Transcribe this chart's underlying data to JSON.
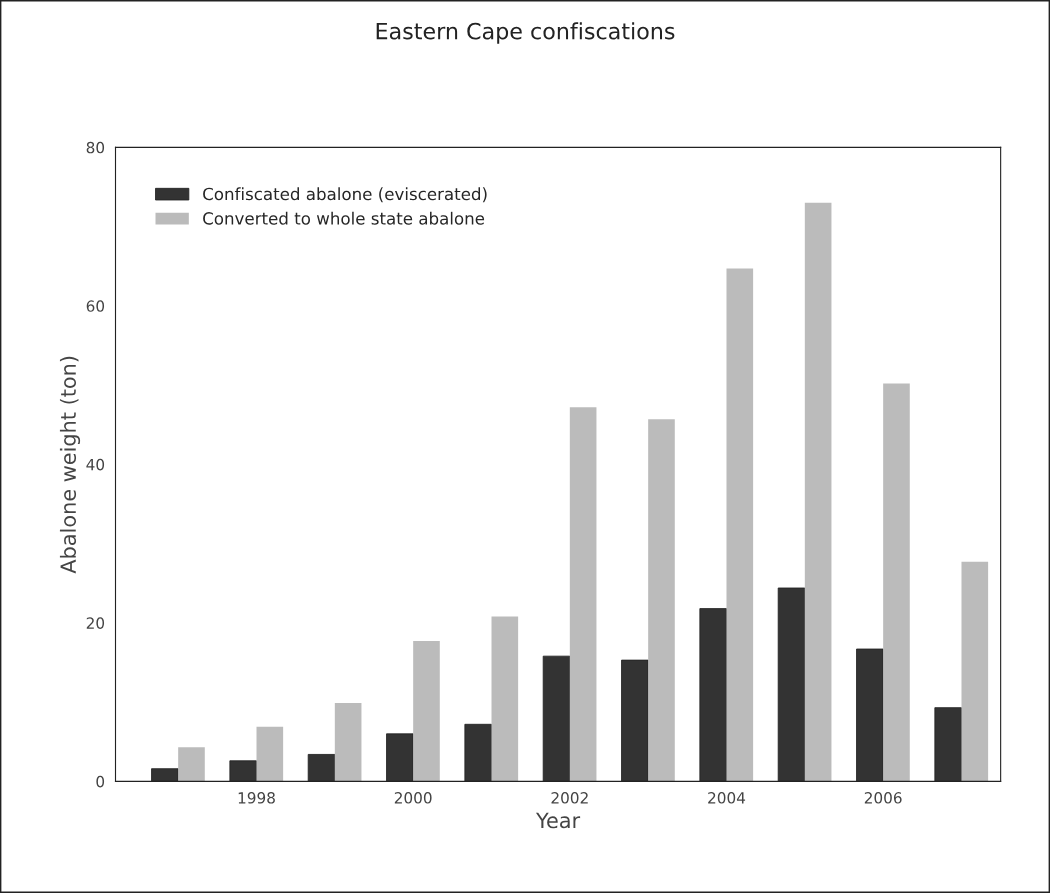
{
  "chart_data": {
    "type": "bar",
    "title": "Eastern Cape confiscations",
    "xlabel": "Year",
    "ylabel": "Abalone weight (ton)",
    "x": [
      1997,
      1998,
      1999,
      2000,
      2001,
      2002,
      2003,
      2004,
      2005,
      2006,
      2007
    ],
    "series": [
      {
        "name": "Confiscated abalone (eviscerated)",
        "color": "#333333",
        "values": [
          1.6,
          2.6,
          3.4,
          6.0,
          7.2,
          15.8,
          15.3,
          21.8,
          24.4,
          16.7,
          9.3
        ]
      },
      {
        "name": "Converted to whole state abalone",
        "color": "#bbbbbb",
        "values": [
          4.3,
          6.9,
          9.9,
          17.7,
          20.8,
          47.2,
          45.7,
          64.7,
          73.0,
          50.2,
          27.7
        ]
      }
    ],
    "xlim": [
      1996.2,
      2007.5
    ],
    "xticks": [
      1998,
      2000,
      2002,
      2004,
      2006
    ],
    "ylim": [
      0,
      80
    ],
    "yticks": [
      0,
      20,
      40,
      60,
      80
    ],
    "grid": false,
    "legend": "top left"
  }
}
